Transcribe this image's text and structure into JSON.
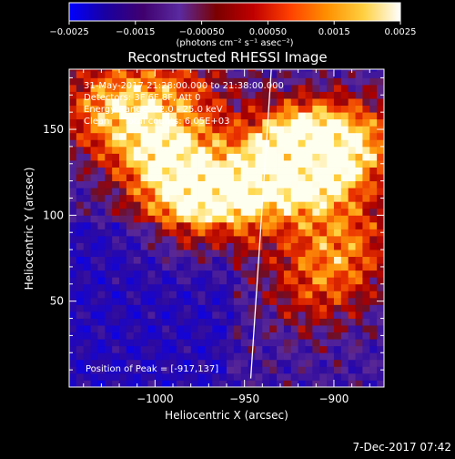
{
  "chart_data": {
    "type": "heatmap",
    "title": "Reconstructed RHESSI Image",
    "xlabel": "Heliocentric X (arcsec)",
    "ylabel": "Heliocentric Y (arcsec)",
    "xlim": [
      -1048,
      -872
    ],
    "ylim": [
      0,
      185
    ],
    "x_ticks": [
      -1000,
      -950,
      -900
    ],
    "x_tick_labels": [
      "−1000",
      "−950",
      "−900"
    ],
    "y_ticks": [
      50,
      100,
      150
    ],
    "y_tick_labels": [
      "50",
      "100",
      "150"
    ],
    "colorbar": {
      "range": [
        -0.0025,
        0.0025
      ],
      "ticks": [
        -0.0025,
        -0.0015,
        -0.0005,
        0.0005,
        0.0015,
        0.0025
      ],
      "tick_labels": [
        "−0.0025",
        "−0.0015",
        "−0.00050",
        "0.00050",
        "0.0015",
        "0.0025"
      ],
      "label": "(photons cm⁻² s⁻¹ asec⁻²)",
      "colormap": [
        "#0000ff",
        "#1a00a0",
        "#40006e",
        "#5a2aa0",
        "#7a0000",
        "#c00000",
        "#ff4000",
        "#ff9000",
        "#ffd040",
        "#ffffff"
      ]
    },
    "limb_line": {
      "x1": -946.5,
      "y1": 5,
      "x2": -935,
      "y2": 185
    },
    "peak": {
      "x": -917,
      "y": 137
    },
    "annotations": [
      "31-May-2017 21:28:00.000 to 21:38:00.000",
      "Detectors: 3F 6F 8F, Att 0",
      "Energy Range: 12.0 - 25.0 keV",
      "Clean     Total counts: 6.05E+03",
      "Position of Peak = [-917,137]"
    ],
    "pixel_scale_arcsec": 4,
    "grid": false,
    "legend": "none"
  },
  "footer_date": "7-Dec-2017 07:42"
}
